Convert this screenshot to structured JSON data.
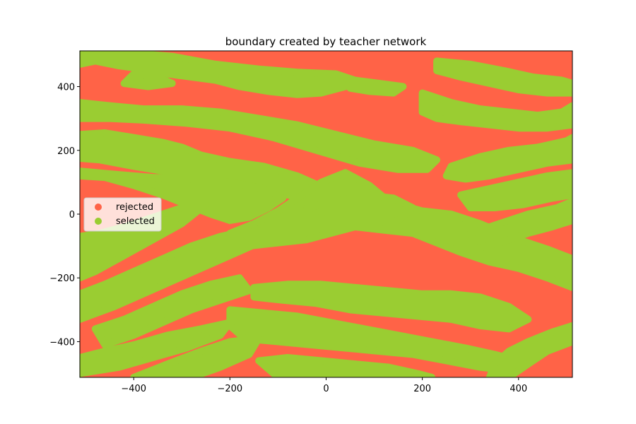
{
  "chart_data": {
    "type": "scatter",
    "title": "boundary created by teacher network",
    "xlabel": "",
    "ylabel": "",
    "xlim": [
      -512,
      512
    ],
    "ylim": [
      -512,
      512
    ],
    "x_ticks": [
      -400,
      -200,
      0,
      200,
      400
    ],
    "y_ticks": [
      400,
      200,
      0,
      -200,
      -400
    ],
    "x_tick_labels": [
      "−400",
      "−200",
      "0",
      "200",
      "400"
    ],
    "y_tick_labels": [
      "400",
      "200",
      "0",
      "−200",
      "−400"
    ],
    "grid": false,
    "legend_position": "center-left",
    "series": [
      {
        "name": "rejected",
        "color": "#ff6347"
      },
      {
        "name": "selected",
        "color": "#9acd32"
      }
    ],
    "selected_regions": [
      {
        "comment_free": true,
        "points": [
          [
            -512,
            470
          ],
          [
            -480,
            480
          ],
          [
            -430,
            465
          ],
          [
            -380,
            455
          ],
          [
            -330,
            440
          ],
          [
            -280,
            430
          ],
          [
            -230,
            420
          ],
          [
            -180,
            400
          ],
          [
            -120,
            385
          ],
          [
            -60,
            375
          ],
          [
            -10,
            380
          ],
          [
            40,
            400
          ],
          [
            60,
            420
          ],
          [
            20,
            440
          ],
          [
            -60,
            445
          ],
          [
            -140,
            455
          ],
          [
            -230,
            470
          ],
          [
            -320,
            495
          ],
          [
            -400,
            505
          ],
          [
            -512,
            500
          ]
        ]
      },
      {
        "comment_free": true,
        "points": [
          [
            -512,
            350
          ],
          [
            -450,
            340
          ],
          [
            -380,
            330
          ],
          [
            -300,
            330
          ],
          [
            -220,
            320
          ],
          [
            -140,
            300
          ],
          [
            -60,
            280
          ],
          [
            20,
            250
          ],
          [
            100,
            220
          ],
          [
            180,
            200
          ],
          [
            230,
            170
          ],
          [
            210,
            140
          ],
          [
            150,
            140
          ],
          [
            70,
            160
          ],
          [
            -20,
            200
          ],
          [
            -110,
            240
          ],
          [
            -200,
            270
          ],
          [
            -290,
            285
          ],
          [
            -380,
            295
          ],
          [
            -450,
            300
          ],
          [
            -512,
            300
          ]
        ]
      },
      {
        "comment_free": true,
        "points": [
          [
            -512,
            250
          ],
          [
            -460,
            255
          ],
          [
            -400,
            240
          ],
          [
            -340,
            225
          ],
          [
            -300,
            210
          ],
          [
            -260,
            185
          ],
          [
            -200,
            165
          ],
          [
            -130,
            150
          ],
          [
            -60,
            120
          ],
          [
            0,
            80
          ],
          [
            -20,
            40
          ],
          [
            -80,
            60
          ],
          [
            -160,
            90
          ],
          [
            -240,
            110
          ],
          [
            -320,
            130
          ],
          [
            -400,
            150
          ],
          [
            -470,
            170
          ],
          [
            -512,
            175
          ]
        ]
      },
      {
        "comment_free": true,
        "points": [
          [
            -512,
            120
          ],
          [
            -460,
            115
          ],
          [
            -400,
            90
          ],
          [
            -340,
            60
          ],
          [
            -290,
            30
          ],
          [
            -240,
            0
          ],
          [
            -200,
            -20
          ],
          [
            -160,
            -10
          ],
          [
            -120,
            20
          ],
          [
            -90,
            50
          ],
          [
            -130,
            80
          ],
          [
            -200,
            100
          ],
          [
            -280,
            110
          ],
          [
            -360,
            115
          ],
          [
            -440,
            125
          ],
          [
            -512,
            135
          ]
        ]
      },
      {
        "comment_free": true,
        "points": [
          [
            -512,
            -70
          ],
          [
            -470,
            -60
          ],
          [
            -420,
            -40
          ],
          [
            -360,
            -10
          ],
          [
            -300,
            20
          ],
          [
            -250,
            30
          ],
          [
            -300,
            -30
          ],
          [
            -360,
            -80
          ],
          [
            -420,
            -130
          ],
          [
            -480,
            -180
          ],
          [
            -512,
            -200
          ]
        ]
      },
      {
        "comment_free": true,
        "points": [
          [
            -512,
            -250
          ],
          [
            -460,
            -220
          ],
          [
            -400,
            -180
          ],
          [
            -340,
            -140
          ],
          [
            -280,
            -100
          ],
          [
            -220,
            -70
          ],
          [
            -160,
            -50
          ],
          [
            -100,
            -40
          ],
          [
            -140,
            -90
          ],
          [
            -200,
            -130
          ],
          [
            -260,
            -170
          ],
          [
            -320,
            -210
          ],
          [
            -380,
            -250
          ],
          [
            -440,
            -290
          ],
          [
            -512,
            -330
          ]
        ]
      },
      {
        "comment_free": true,
        "points": [
          [
            -480,
            -360
          ],
          [
            -420,
            -330
          ],
          [
            -360,
            -290
          ],
          [
            -300,
            -250
          ],
          [
            -240,
            -220
          ],
          [
            -180,
            -200
          ],
          [
            -160,
            -240
          ],
          [
            -220,
            -270
          ],
          [
            -280,
            -300
          ],
          [
            -340,
            -340
          ],
          [
            -400,
            -380
          ],
          [
            -460,
            -410
          ]
        ]
      },
      {
        "comment_free": true,
        "points": [
          [
            -512,
            -450
          ],
          [
            -460,
            -430
          ],
          [
            -400,
            -410
          ],
          [
            -330,
            -380
          ],
          [
            -260,
            -360
          ],
          [
            -200,
            -340
          ],
          [
            -220,
            -380
          ],
          [
            -290,
            -420
          ],
          [
            -360,
            -450
          ],
          [
            -430,
            -480
          ],
          [
            -512,
            -500
          ]
        ]
      },
      {
        "comment_free": true,
        "points": [
          [
            -400,
            -512
          ],
          [
            -330,
            -470
          ],
          [
            -260,
            -430
          ],
          [
            -200,
            -400
          ],
          [
            -140,
            -390
          ],
          [
            -160,
            -440
          ],
          [
            -220,
            -480
          ],
          [
            -280,
            -512
          ]
        ]
      },
      {
        "comment_free": true,
        "points": [
          [
            -200,
            -60
          ],
          [
            -150,
            -30
          ],
          [
            -100,
            10
          ],
          [
            -60,
            50
          ],
          [
            -10,
            100
          ],
          [
            40,
            130
          ],
          [
            90,
            90
          ],
          [
            130,
            40
          ],
          [
            200,
            10
          ],
          [
            260,
            0
          ],
          [
            320,
            -30
          ],
          [
            400,
            -80
          ],
          [
            460,
            -110
          ],
          [
            512,
            -140
          ],
          [
            512,
            -230
          ],
          [
            460,
            -200
          ],
          [
            400,
            -170
          ],
          [
            340,
            -150
          ],
          [
            280,
            -120
          ],
          [
            230,
            -90
          ],
          [
            180,
            -60
          ],
          [
            120,
            -50
          ],
          [
            60,
            -40
          ],
          [
            10,
            -60
          ],
          [
            -40,
            -80
          ],
          [
            -100,
            -90
          ],
          [
            -160,
            -100
          ]
        ]
      },
      {
        "comment_free": true,
        "points": [
          [
            -150,
            -230
          ],
          [
            -80,
            -220
          ],
          [
            -10,
            -220
          ],
          [
            60,
            -230
          ],
          [
            130,
            -240
          ],
          [
            200,
            -250
          ],
          [
            260,
            -250
          ],
          [
            320,
            -260
          ],
          [
            380,
            -290
          ],
          [
            420,
            -330
          ],
          [
            380,
            -360
          ],
          [
            320,
            -350
          ],
          [
            260,
            -330
          ],
          [
            190,
            -320
          ],
          [
            120,
            -310
          ],
          [
            50,
            -300
          ],
          [
            -20,
            -280
          ],
          [
            -90,
            -270
          ],
          [
            -150,
            -260
          ]
        ]
      },
      {
        "comment_free": true,
        "points": [
          [
            -200,
            -300
          ],
          [
            -130,
            -310
          ],
          [
            -60,
            -320
          ],
          [
            10,
            -340
          ],
          [
            80,
            -360
          ],
          [
            150,
            -380
          ],
          [
            220,
            -400
          ],
          [
            290,
            -420
          ],
          [
            350,
            -440
          ],
          [
            400,
            -460
          ],
          [
            380,
            -490
          ],
          [
            320,
            -480
          ],
          [
            250,
            -460
          ],
          [
            180,
            -440
          ],
          [
            110,
            -430
          ],
          [
            40,
            -420
          ],
          [
            -30,
            -410
          ],
          [
            -100,
            -400
          ],
          [
            -170,
            -390
          ],
          [
            -200,
            -350
          ]
        ]
      },
      {
        "comment_free": true,
        "points": [
          [
            -140,
            -460
          ],
          [
            -80,
            -450
          ],
          [
            -10,
            -460
          ],
          [
            60,
            -470
          ],
          [
            130,
            -480
          ],
          [
            190,
            -500
          ],
          [
            220,
            -512
          ],
          [
            -100,
            -512
          ]
        ]
      },
      {
        "comment_free": true,
        "points": [
          [
            380,
            -512
          ],
          [
            420,
            -470
          ],
          [
            460,
            -430
          ],
          [
            512,
            -400
          ],
          [
            512,
            -350
          ],
          [
            470,
            -370
          ],
          [
            420,
            -400
          ],
          [
            380,
            -430
          ],
          [
            350,
            -470
          ],
          [
            340,
            -512
          ]
        ]
      },
      {
        "comment_free": true,
        "points": [
          [
            200,
            380
          ],
          [
            260,
            350
          ],
          [
            320,
            330
          ],
          [
            380,
            320
          ],
          [
            440,
            310
          ],
          [
            490,
            320
          ],
          [
            512,
            340
          ],
          [
            512,
            280
          ],
          [
            460,
            270
          ],
          [
            400,
            270
          ],
          [
            340,
            280
          ],
          [
            280,
            290
          ],
          [
            230,
            300
          ],
          [
            200,
            320
          ]
        ]
      },
      {
        "comment_free": true,
        "points": [
          [
            230,
            480
          ],
          [
            300,
            470
          ],
          [
            370,
            450
          ],
          [
            430,
            430
          ],
          [
            490,
            420
          ],
          [
            512,
            410
          ],
          [
            512,
            380
          ],
          [
            460,
            380
          ],
          [
            400,
            390
          ],
          [
            340,
            410
          ],
          [
            280,
            430
          ],
          [
            230,
            450
          ]
        ]
      },
      {
        "comment_free": true,
        "points": [
          [
            260,
            150
          ],
          [
            320,
            180
          ],
          [
            380,
            200
          ],
          [
            440,
            210
          ],
          [
            500,
            230
          ],
          [
            512,
            240
          ],
          [
            512,
            170
          ],
          [
            460,
            160
          ],
          [
            400,
            140
          ],
          [
            340,
            120
          ],
          [
            290,
            110
          ],
          [
            250,
            120
          ]
        ]
      },
      {
        "comment_free": true,
        "points": [
          [
            280,
            60
          ],
          [
            340,
            80
          ],
          [
            400,
            100
          ],
          [
            460,
            120
          ],
          [
            512,
            130
          ],
          [
            512,
            60
          ],
          [
            470,
            50
          ],
          [
            410,
            30
          ],
          [
            350,
            20
          ],
          [
            300,
            20
          ]
        ]
      },
      {
        "comment_free": true,
        "points": [
          [
            300,
            -60
          ],
          [
            360,
            -30
          ],
          [
            420,
            0
          ],
          [
            480,
            20
          ],
          [
            512,
            40
          ],
          [
            512,
            -20
          ],
          [
            470,
            -40
          ],
          [
            420,
            -60
          ],
          [
            360,
            -90
          ],
          [
            310,
            -110
          ]
        ]
      },
      {
        "comment_free": true,
        "points": [
          [
            -420,
            410
          ],
          [
            -370,
            400
          ],
          [
            -320,
            410
          ],
          [
            -350,
            430
          ],
          [
            -400,
            440
          ]
        ]
      },
      {
        "comment_free": true,
        "points": [
          [
            60,
            420
          ],
          [
            110,
            410
          ],
          [
            160,
            400
          ],
          [
            140,
            380
          ],
          [
            90,
            385
          ],
          [
            50,
            395
          ]
        ]
      },
      {
        "comment_free": true,
        "points": [
          [
            -40,
            20
          ],
          [
            20,
            40
          ],
          [
            80,
            60
          ],
          [
            140,
            50
          ],
          [
            180,
            20
          ],
          [
            150,
            -20
          ],
          [
            90,
            -30
          ],
          [
            30,
            -20
          ],
          [
            -30,
            -10
          ]
        ]
      }
    ]
  }
}
